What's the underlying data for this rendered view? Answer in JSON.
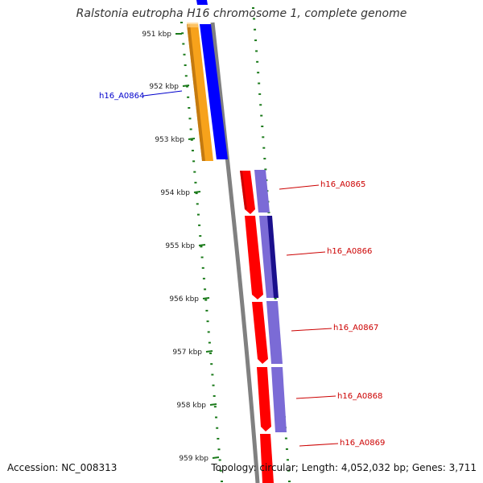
{
  "title": "Ralstonia eutropha H16 chromosome 1, complete genome",
  "footer": {
    "accession": "Accession: NC_008313",
    "stats": "Topology: circular; Length: 4,052,032 bp; Genes: 3,711"
  },
  "colors": {
    "backbone": "#808080",
    "tick": "#1a7a1a",
    "orange": "#f7a21b",
    "blue": "#0000ff",
    "red": "#ff0000",
    "lavender": "#7b6bd6",
    "navy": "#1a0f8c",
    "label_blue": "#0000cc",
    "label_red": "#cc0000"
  },
  "scale_labels": [
    "951 kbp",
    "952 kbp",
    "953 kbp",
    "954 kbp",
    "955 kbp",
    "956 kbp",
    "957 kbp",
    "958 kbp",
    "959 kbp"
  ],
  "genes": [
    {
      "name": "h16_A0864",
      "label_color": "blue"
    },
    {
      "name": "h16_A0865",
      "label_color": "red"
    },
    {
      "name": "h16_A0866",
      "label_color": "red"
    },
    {
      "name": "h16_A0867",
      "label_color": "red"
    },
    {
      "name": "h16_A0868",
      "label_color": "red"
    },
    {
      "name": "h16_A0869",
      "label_color": "red"
    }
  ]
}
